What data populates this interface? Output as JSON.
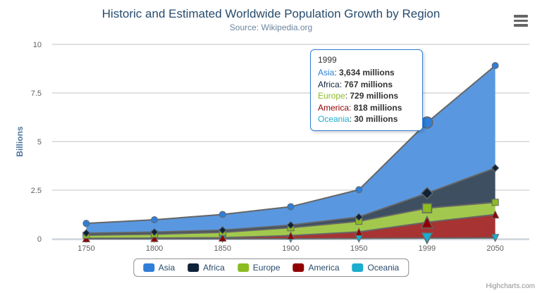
{
  "chart_data": {
    "type": "area",
    "stacking": "normal",
    "title": "Historic and Estimated Worldwide Population Growth by Region",
    "subtitle": "Source: Wikipedia.org",
    "ylabel": "Billions",
    "units": "millions",
    "categories": [
      "1750",
      "1800",
      "1850",
      "1900",
      "1950",
      "1999",
      "2050"
    ],
    "yticks": [
      0,
      2.5,
      5,
      7.5,
      10
    ],
    "ytick_labels": [
      "0",
      "2.5",
      "5",
      "7.5",
      "10"
    ],
    "ylim": [
      0,
      10
    ],
    "grid": true,
    "legend_position": "bottom",
    "series": [
      {
        "name": "Asia",
        "color": "#2f7ed8",
        "marker": "circle",
        "values": [
          502,
          635,
          809,
          947,
          1402,
          3634,
          5268
        ]
      },
      {
        "name": "Africa",
        "color": "#0d233a",
        "marker": "diamond",
        "values": [
          106,
          107,
          111,
          133,
          221,
          767,
          1766
        ]
      },
      {
        "name": "Europe",
        "color": "#8bbc21",
        "marker": "square",
        "values": [
          163,
          203,
          276,
          408,
          547,
          729,
          628
        ]
      },
      {
        "name": "America",
        "color": "#910000",
        "marker": "triangle",
        "values": [
          18,
          31,
          54,
          156,
          339,
          818,
          1201
        ]
      },
      {
        "name": "Oceania",
        "color": "#1aadce",
        "marker": "triangle-down",
        "values": [
          2,
          2,
          2,
          6,
          13,
          30,
          46
        ]
      }
    ],
    "hover": {
      "category": "1999",
      "index": 5
    }
  },
  "tooltip": {
    "header": "1999",
    "rows": [
      {
        "name": "Asia",
        "value": "3,634 millions",
        "color": "#2f7ed8"
      },
      {
        "name": "Africa",
        "value": "767 millions",
        "color": "#0d233a"
      },
      {
        "name": "Europe",
        "value": "729 millions",
        "color": "#8bbc21"
      },
      {
        "name": "America",
        "value": "818 millions",
        "color": "#910000"
      },
      {
        "name": "Oceania",
        "value": "30 millions",
        "color": "#1aadce"
      }
    ]
  },
  "credits": {
    "label": "Highcharts.com"
  },
  "icons": {
    "export_menu": "hamburger-menu-icon"
  },
  "style": {
    "title_color": "#274b6d",
    "subtitle_color": "#6D869F",
    "axis_label_color": "#606060",
    "axis_title_color": "#4d759e",
    "grid_color": "#C0C0C0",
    "axis_line_color": "#C0D0E0",
    "series_line_color": "#666666",
    "marker_stroke": "#666666",
    "tooltip_border": "#2f7ed8",
    "legend_border": "#909090",
    "legend_text_color": "#274b6d",
    "credits_color": "#909090",
    "area_fill_opacity": 0.8
  }
}
